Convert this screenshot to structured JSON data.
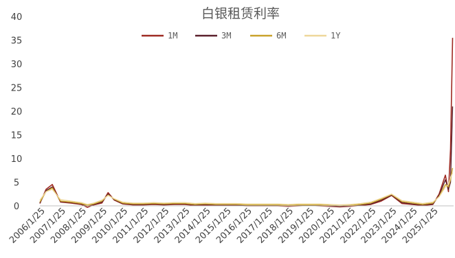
{
  "chart_data": {
    "type": "line",
    "title": "白银租赁利率",
    "xlabel": "",
    "ylabel": "",
    "ylim": [
      0,
      40
    ],
    "yticks": [
      "0",
      "5",
      "10",
      "15",
      "20",
      "25",
      "30",
      "35",
      "40"
    ],
    "grid": false,
    "legend_position": "top",
    "x_tick_labels": [
      "2006/1/25",
      "2007/1/25",
      "2008/1/25",
      "2009/1/25",
      "2010/1/25",
      "2011/1/25",
      "2012/1/25",
      "2013/1/25",
      "2014/1/25",
      "2015/1/25",
      "2016/1/25",
      "2017/1/25",
      "2018/1/25",
      "2019/1/25",
      "2020/1/25",
      "2021/1/25",
      "2022/1/25",
      "2023/1/25",
      "2024/1/25",
      "2025/1/25"
    ],
    "x": [
      2006.0,
      2006.3,
      2006.6,
      2007.0,
      2007.5,
      2008.0,
      2008.3,
      2008.6,
      2009.0,
      2009.3,
      2009.6,
      2010.0,
      2010.5,
      2011.0,
      2011.5,
      2012.0,
      2012.5,
      2013.0,
      2013.5,
      2014.0,
      2014.5,
      2015.0,
      2015.5,
      2016.0,
      2016.5,
      2017.0,
      2017.5,
      2018.0,
      2018.5,
      2019.0,
      2019.5,
      2020.0,
      2020.5,
      2021.0,
      2021.5,
      2022.0,
      2022.5,
      2023.0,
      2023.5,
      2024.0,
      2024.5,
      2025.0,
      2025.3,
      2025.6,
      2025.75,
      2025.85,
      2025.95
    ],
    "series": [
      {
        "name": "1M",
        "color": "#9e2a22",
        "values": [
          0.5,
          3.5,
          4.5,
          0.8,
          0.6,
          0.3,
          -0.3,
          0.2,
          0.6,
          2.8,
          1.2,
          0.4,
          0.2,
          0.2,
          0.3,
          0.2,
          0.3,
          0.3,
          0.1,
          0.2,
          0.1,
          0.1,
          0.1,
          0.0,
          0.0,
          0.0,
          0.0,
          -0.1,
          0.0,
          0.1,
          0.0,
          -0.1,
          -0.2,
          -0.1,
          0.1,
          0.3,
          1.0,
          2.2,
          0.5,
          0.3,
          0.1,
          0.3,
          2.5,
          6.5,
          3.0,
          12.0,
          35.5
        ]
      },
      {
        "name": "3M",
        "color": "#5a1f2b",
        "values": [
          0.6,
          3.2,
          4.0,
          0.9,
          0.7,
          0.4,
          0.0,
          0.3,
          0.8,
          2.5,
          1.3,
          0.5,
          0.3,
          0.3,
          0.4,
          0.3,
          0.4,
          0.4,
          0.2,
          0.3,
          0.2,
          0.2,
          0.2,
          0.1,
          0.1,
          0.1,
          0.1,
          0.0,
          0.1,
          0.1,
          0.1,
          0.0,
          -0.1,
          0.0,
          0.2,
          0.4,
          1.2,
          2.3,
          0.7,
          0.4,
          0.2,
          0.4,
          2.2,
          5.5,
          3.5,
          5.0,
          21.0
        ]
      },
      {
        "name": "6M",
        "color": "#c9a22a",
        "values": [
          0.8,
          3.0,
          3.8,
          1.0,
          0.8,
          0.5,
          0.1,
          0.4,
          1.0,
          2.3,
          1.4,
          0.6,
          0.4,
          0.4,
          0.5,
          0.4,
          0.5,
          0.5,
          0.3,
          0.4,
          0.3,
          0.3,
          0.3,
          0.2,
          0.2,
          0.2,
          0.2,
          0.1,
          0.2,
          0.2,
          0.2,
          0.1,
          0.0,
          0.1,
          0.3,
          0.6,
          1.4,
          2.4,
          0.9,
          0.6,
          0.3,
          0.6,
          2.0,
          4.5,
          4.0,
          5.5,
          8.0
        ]
      },
      {
        "name": "1Y",
        "color": "#eed79a",
        "values": [
          1.2,
          3.0,
          3.5,
          1.3,
          1.0,
          0.7,
          0.3,
          0.6,
          1.2,
          2.2,
          1.5,
          0.8,
          0.6,
          0.6,
          0.7,
          0.6,
          0.7,
          0.7,
          0.5,
          0.6,
          0.5,
          0.5,
          0.5,
          0.4,
          0.4,
          0.4,
          0.4,
          0.3,
          0.4,
          0.4,
          0.4,
          0.3,
          0.2,
          0.3,
          0.5,
          0.8,
          1.6,
          2.5,
          1.1,
          0.8,
          0.5,
          0.8,
          1.9,
          4.0,
          4.5,
          6.0,
          7.0
        ]
      }
    ]
  }
}
